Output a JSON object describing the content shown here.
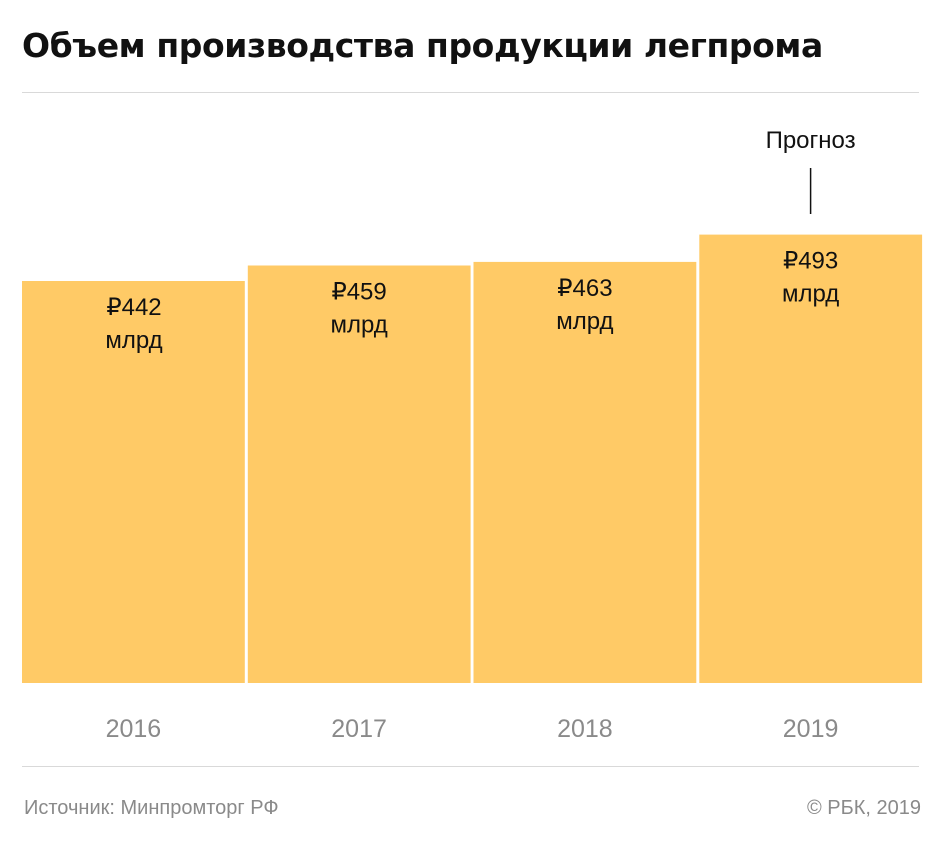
{
  "title": "Объем производства продукции легпрома",
  "footer": {
    "source": "Источник: Минпромторг РФ",
    "copyright": "© РБК, 2019"
  },
  "chart_data": {
    "type": "bar",
    "title": "Объем производства продукции легпрома",
    "categories": [
      "2016",
      "2017",
      "2018",
      "2019"
    ],
    "values": [
      442,
      459,
      463,
      493
    ],
    "value_labels": [
      [
        "₽442",
        "млрд"
      ],
      [
        "₽459",
        "млрд"
      ],
      [
        "₽463",
        "млрд"
      ],
      [
        "₽493",
        "млрд"
      ]
    ],
    "unit": "млрд",
    "annotations": [
      {
        "category": "2019",
        "text": "Прогноз"
      }
    ],
    "bar_color": "#ffca66",
    "grid": false,
    "legend": "none"
  }
}
